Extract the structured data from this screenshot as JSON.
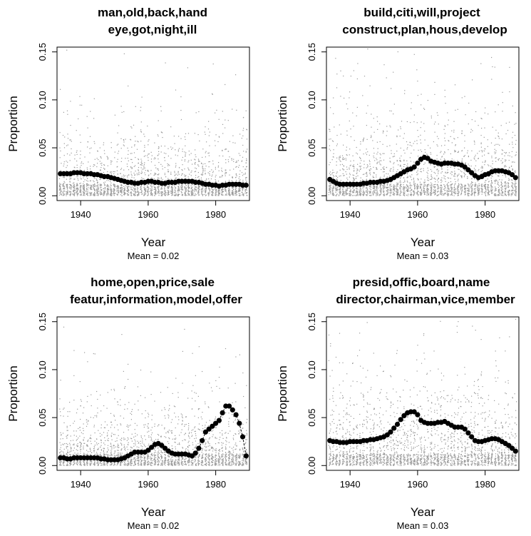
{
  "chart_data": [
    {
      "type": "scatter",
      "title": "man,old,back,hand",
      "subtitle": "eye,got,night,ill",
      "xlabel": "Year",
      "ylabel": "Proportion",
      "caption": "Mean =  0.02",
      "xlim": [
        1933,
        1990
      ],
      "ylim": [
        -0.005,
        0.155
      ],
      "xticks": [
        "1940",
        "1960",
        "1980"
      ],
      "yticks": [
        "0.00",
        "0.05",
        "0.10",
        "0.15"
      ],
      "noise_scale": 0.022,
      "series": [
        {
          "values": [
            [
              1934,
              0.023
            ],
            [
              1935,
              0.023
            ],
            [
              1936,
              0.023
            ],
            [
              1937,
              0.023
            ],
            [
              1938,
              0.024
            ],
            [
              1939,
              0.024
            ],
            [
              1940,
              0.024
            ],
            [
              1941,
              0.023
            ],
            [
              1942,
              0.023
            ],
            [
              1943,
              0.023
            ],
            [
              1944,
              0.022
            ],
            [
              1945,
              0.022
            ],
            [
              1946,
              0.021
            ],
            [
              1947,
              0.02
            ],
            [
              1948,
              0.02
            ],
            [
              1949,
              0.019
            ],
            [
              1950,
              0.018
            ],
            [
              1951,
              0.017
            ],
            [
              1952,
              0.016
            ],
            [
              1953,
              0.015
            ],
            [
              1954,
              0.014
            ],
            [
              1955,
              0.014
            ],
            [
              1956,
              0.013
            ],
            [
              1957,
              0.013
            ],
            [
              1958,
              0.014
            ],
            [
              1959,
              0.014
            ],
            [
              1960,
              0.015
            ],
            [
              1961,
              0.015
            ],
            [
              1962,
              0.014
            ],
            [
              1963,
              0.014
            ],
            [
              1964,
              0.013
            ],
            [
              1965,
              0.013
            ],
            [
              1966,
              0.014
            ],
            [
              1967,
              0.014
            ],
            [
              1968,
              0.014
            ],
            [
              1969,
              0.015
            ],
            [
              1970,
              0.015
            ],
            [
              1971,
              0.015
            ],
            [
              1972,
              0.015
            ],
            [
              1973,
              0.015
            ],
            [
              1974,
              0.014
            ],
            [
              1975,
              0.014
            ],
            [
              1976,
              0.013
            ],
            [
              1977,
              0.012
            ],
            [
              1978,
              0.012
            ],
            [
              1979,
              0.011
            ],
            [
              1980,
              0.011
            ],
            [
              1981,
              0.01
            ],
            [
              1982,
              0.011
            ],
            [
              1983,
              0.011
            ],
            [
              1984,
              0.012
            ],
            [
              1985,
              0.012
            ],
            [
              1986,
              0.012
            ],
            [
              1987,
              0.012
            ],
            [
              1988,
              0.011
            ],
            [
              1989,
              0.011
            ]
          ]
        }
      ]
    },
    {
      "type": "scatter",
      "title": "build,citi,will,project",
      "subtitle": "construct,plan,hous,develop",
      "xlabel": "Year",
      "ylabel": "Proportion",
      "caption": "Mean =  0.03",
      "xlim": [
        1933,
        1990
      ],
      "ylim": [
        -0.005,
        0.155
      ],
      "xticks": [
        "1940",
        "1960",
        "1980"
      ],
      "yticks": [
        "0.00",
        "0.05",
        "0.10",
        "0.15"
      ],
      "noise_scale": 0.028,
      "series": [
        {
          "values": [
            [
              1934,
              0.017
            ],
            [
              1935,
              0.015
            ],
            [
              1936,
              0.013
            ],
            [
              1937,
              0.012
            ],
            [
              1938,
              0.012
            ],
            [
              1939,
              0.012
            ],
            [
              1940,
              0.012
            ],
            [
              1941,
              0.012
            ],
            [
              1942,
              0.012
            ],
            [
              1943,
              0.012
            ],
            [
              1944,
              0.013
            ],
            [
              1945,
              0.013
            ],
            [
              1946,
              0.014
            ],
            [
              1947,
              0.014
            ],
            [
              1948,
              0.014
            ],
            [
              1949,
              0.015
            ],
            [
              1950,
              0.015
            ],
            [
              1951,
              0.016
            ],
            [
              1952,
              0.017
            ],
            [
              1953,
              0.019
            ],
            [
              1954,
              0.021
            ],
            [
              1955,
              0.023
            ],
            [
              1956,
              0.025
            ],
            [
              1957,
              0.027
            ],
            [
              1958,
              0.028
            ],
            [
              1959,
              0.03
            ],
            [
              1960,
              0.034
            ],
            [
              1961,
              0.038
            ],
            [
              1962,
              0.04
            ],
            [
              1963,
              0.039
            ],
            [
              1964,
              0.036
            ],
            [
              1965,
              0.035
            ],
            [
              1966,
              0.034
            ],
            [
              1967,
              0.033
            ],
            [
              1968,
              0.034
            ],
            [
              1969,
              0.034
            ],
            [
              1970,
              0.034
            ],
            [
              1971,
              0.033
            ],
            [
              1972,
              0.033
            ],
            [
              1973,
              0.032
            ],
            [
              1974,
              0.03
            ],
            [
              1975,
              0.027
            ],
            [
              1976,
              0.024
            ],
            [
              1977,
              0.021
            ],
            [
              1978,
              0.019
            ],
            [
              1979,
              0.02
            ],
            [
              1980,
              0.022
            ],
            [
              1981,
              0.023
            ],
            [
              1982,
              0.025
            ],
            [
              1983,
              0.026
            ],
            [
              1984,
              0.026
            ],
            [
              1985,
              0.026
            ],
            [
              1986,
              0.025
            ],
            [
              1987,
              0.024
            ],
            [
              1988,
              0.022
            ],
            [
              1989,
              0.019
            ]
          ]
        }
      ]
    },
    {
      "type": "scatter",
      "title": "home,open,price,sale",
      "subtitle": "featur,information,model,offer",
      "xlabel": "Year",
      "ylabel": "Proportion",
      "caption": "Mean =  0.02",
      "xlim": [
        1933,
        1990
      ],
      "ylim": [
        -0.005,
        0.155
      ],
      "xticks": [
        "1940",
        "1960",
        "1980"
      ],
      "yticks": [
        "0.00",
        "0.05",
        "0.10",
        "0.15"
      ],
      "noise_scale": 0.022,
      "series": [
        {
          "values": [
            [
              1934,
              0.008
            ],
            [
              1935,
              0.008
            ],
            [
              1936,
              0.007
            ],
            [
              1937,
              0.007
            ],
            [
              1938,
              0.008
            ],
            [
              1939,
              0.008
            ],
            [
              1940,
              0.008
            ],
            [
              1941,
              0.008
            ],
            [
              1942,
              0.008
            ],
            [
              1943,
              0.008
            ],
            [
              1944,
              0.008
            ],
            [
              1945,
              0.008
            ],
            [
              1946,
              0.007
            ],
            [
              1947,
              0.007
            ],
            [
              1948,
              0.006
            ],
            [
              1949,
              0.006
            ],
            [
              1950,
              0.006
            ],
            [
              1951,
              0.006
            ],
            [
              1952,
              0.007
            ],
            [
              1953,
              0.008
            ],
            [
              1954,
              0.01
            ],
            [
              1955,
              0.012
            ],
            [
              1956,
              0.014
            ],
            [
              1957,
              0.014
            ],
            [
              1958,
              0.014
            ],
            [
              1959,
              0.014
            ],
            [
              1960,
              0.016
            ],
            [
              1961,
              0.019
            ],
            [
              1962,
              0.022
            ],
            [
              1963,
              0.023
            ],
            [
              1964,
              0.021
            ],
            [
              1965,
              0.018
            ],
            [
              1966,
              0.015
            ],
            [
              1967,
              0.013
            ],
            [
              1968,
              0.012
            ],
            [
              1969,
              0.012
            ],
            [
              1970,
              0.012
            ],
            [
              1971,
              0.012
            ],
            [
              1972,
              0.011
            ],
            [
              1973,
              0.01
            ],
            [
              1974,
              0.013
            ],
            [
              1975,
              0.018
            ],
            [
              1976,
              0.026
            ],
            [
              1977,
              0.035
            ],
            [
              1978,
              0.038
            ],
            [
              1979,
              0.041
            ],
            [
              1980,
              0.044
            ],
            [
              1981,
              0.047
            ],
            [
              1982,
              0.055
            ],
            [
              1983,
              0.062
            ],
            [
              1984,
              0.062
            ],
            [
              1985,
              0.058
            ],
            [
              1986,
              0.053
            ],
            [
              1987,
              0.044
            ],
            [
              1988,
              0.03
            ],
            [
              1989,
              0.01
            ]
          ]
        }
      ]
    },
    {
      "type": "scatter",
      "title": "presid,offic,board,name",
      "subtitle": "director,chairman,vice,member",
      "xlabel": "Year",
      "ylabel": "Proportion",
      "caption": "Mean =  0.03",
      "xlim": [
        1933,
        1990
      ],
      "ylim": [
        -0.005,
        0.155
      ],
      "xticks": [
        "1940",
        "1960",
        "1980"
      ],
      "yticks": [
        "0.00",
        "0.05",
        "0.10",
        "0.15"
      ],
      "noise_scale": 0.03,
      "series": [
        {
          "values": [
            [
              1934,
              0.026
            ],
            [
              1935,
              0.025
            ],
            [
              1936,
              0.025
            ],
            [
              1937,
              0.024
            ],
            [
              1938,
              0.024
            ],
            [
              1939,
              0.024
            ],
            [
              1940,
              0.025
            ],
            [
              1941,
              0.025
            ],
            [
              1942,
              0.025
            ],
            [
              1943,
              0.025
            ],
            [
              1944,
              0.026
            ],
            [
              1945,
              0.026
            ],
            [
              1946,
              0.027
            ],
            [
              1947,
              0.027
            ],
            [
              1948,
              0.028
            ],
            [
              1949,
              0.029
            ],
            [
              1950,
              0.03
            ],
            [
              1951,
              0.032
            ],
            [
              1952,
              0.035
            ],
            [
              1953,
              0.039
            ],
            [
              1954,
              0.043
            ],
            [
              1955,
              0.048
            ],
            [
              1956,
              0.052
            ],
            [
              1957,
              0.055
            ],
            [
              1958,
              0.056
            ],
            [
              1959,
              0.056
            ],
            [
              1960,
              0.053
            ],
            [
              1961,
              0.047
            ],
            [
              1962,
              0.045
            ],
            [
              1963,
              0.044
            ],
            [
              1964,
              0.044
            ],
            [
              1965,
              0.044
            ],
            [
              1966,
              0.045
            ],
            [
              1967,
              0.045
            ],
            [
              1968,
              0.046
            ],
            [
              1969,
              0.044
            ],
            [
              1970,
              0.042
            ],
            [
              1971,
              0.04
            ],
            [
              1972,
              0.04
            ],
            [
              1973,
              0.04
            ],
            [
              1974,
              0.038
            ],
            [
              1975,
              0.034
            ],
            [
              1976,
              0.03
            ],
            [
              1977,
              0.026
            ],
            [
              1978,
              0.025
            ],
            [
              1979,
              0.025
            ],
            [
              1980,
              0.026
            ],
            [
              1981,
              0.027
            ],
            [
              1982,
              0.028
            ],
            [
              1983,
              0.028
            ],
            [
              1984,
              0.027
            ],
            [
              1985,
              0.025
            ],
            [
              1986,
              0.023
            ],
            [
              1987,
              0.021
            ],
            [
              1988,
              0.018
            ],
            [
              1989,
              0.015
            ]
          ]
        }
      ]
    }
  ]
}
